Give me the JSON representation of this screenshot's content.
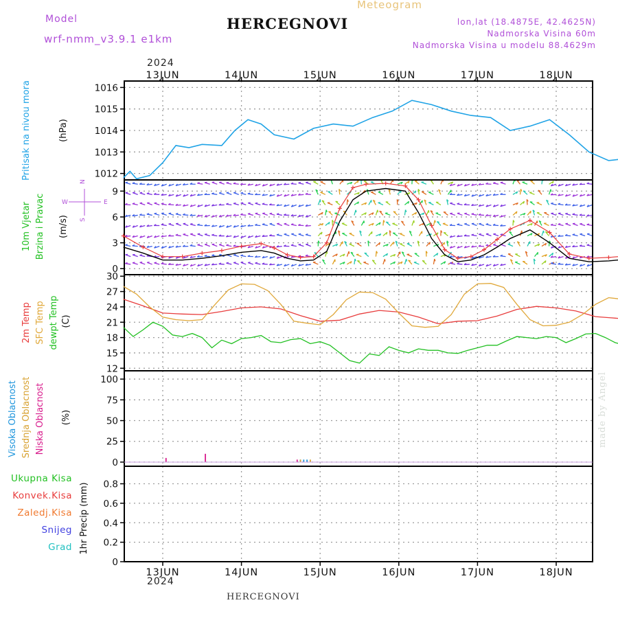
{
  "header": {
    "model_label": "Model",
    "model_name": "wrf-nmm_v3.9.1 e1km",
    "title": "HERCEGNOVI",
    "meteogram": "Meteogram",
    "lonlat": "lon,lat (18.4875E, 42.4625N)",
    "elevation": "Nadmorska Visina 60m",
    "model_elevation": "Nadmorska Visina u modelu 88.4629m",
    "year": "2024",
    "footer_title": "HERCEGNOVI",
    "watermark": "made by Angel"
  },
  "colors": {
    "pressure": "#1fa3e6",
    "temp2m": "#e83c3c",
    "sfc": "#e0a83a",
    "dewpt": "#22c022",
    "high_cloud": "#1c94dc",
    "mid_cloud": "#d8a232",
    "low_cloud": "#d81b8c",
    "wind_speed": "#000000",
    "wind_gust": "#e83c3c",
    "grid": "#9a9a9a"
  },
  "chart_data": [
    {
      "type": "line",
      "panel": "pressure",
      "ylabel_lines": [
        "Pritisak na nivou mora"
      ],
      "unit": "(hPa)",
      "x_ticks": [
        "13JUN",
        "14JUN",
        "15JUN",
        "16JUN",
        "17JUN",
        "18JUN"
      ],
      "ylim": [
        1011.7,
        1016.3
      ],
      "yticks": [
        1012,
        1013,
        1014,
        1015,
        1016
      ],
      "grid": true,
      "series": [
        {
          "key": "pressure",
          "x_hours": [
            0,
            2,
            4,
            8,
            12,
            16,
            20,
            24,
            30,
            34,
            38,
            42,
            46,
            52,
            58,
            64,
            70,
            76,
            82,
            88,
            94,
            100,
            106,
            112,
            118,
            124,
            130,
            136,
            142,
            148,
            154,
            160,
            166,
            172,
            178,
            184,
            190,
            196,
            202,
            208,
            214,
            220,
            226,
            232,
            238,
            244,
            250,
            256,
            262,
            268,
            274,
            280,
            286,
            290,
            294,
            298,
            302,
            306
          ],
          "values": [
            1011.8,
            1012.1,
            1011.75,
            1011.9,
            1012.5,
            1013.3,
            1013.2,
            1013.35,
            1013.3,
            1014.0,
            1014.5,
            1014.3,
            1013.8,
            1013.6,
            1014.1,
            1014.3,
            1014.2,
            1014.6,
            1014.9,
            1015.4,
            1015.2,
            1014.9,
            1014.7,
            1014.6,
            1014.0,
            1014.2,
            1014.5,
            1013.8,
            1013.0,
            1012.6,
            1012.7,
            1012.8,
            1012.75,
            1013.3,
            1014.0,
            1014.3,
            1014.0,
            1013.5,
            1013.2,
            1013.6,
            1013.9,
            1014.0,
            1014.5,
            1014.9,
            1015.2,
            1015.05,
            1014.8,
            1015.2,
            1015.0,
            1014.8,
            1015.2,
            1015.5,
            1015.9,
            1015.9,
            1015.8,
            1015.75,
            1015.9,
            1015.8
          ]
        }
      ]
    },
    {
      "type": "line",
      "panel": "wind",
      "ylabel_lines": [
        "10m Vjetar",
        "Brzina i Pravac"
      ],
      "unit": "(m/s)",
      "direction_key": {
        "n": "N",
        "s": "S",
        "w": "W",
        "e": "E"
      },
      "ylim": [
        -0.7,
        10.3
      ],
      "yticks": [
        0,
        3,
        6,
        9
      ],
      "grid": true,
      "series": [
        {
          "key": "wind_speed",
          "x_hours": [
            0,
            6,
            12,
            18,
            24,
            30,
            36,
            42,
            46,
            50,
            54,
            58,
            62,
            66,
            70,
            74,
            80,
            86,
            90,
            94,
            98,
            102,
            106,
            110,
            114,
            118,
            124,
            130,
            136,
            142,
            148,
            154,
            160,
            166,
            172,
            178,
            184,
            190,
            196,
            202,
            208,
            214,
            220,
            226,
            232,
            238,
            244,
            250,
            256,
            262,
            268,
            274,
            280,
            286,
            292,
            298,
            306
          ],
          "values": [
            2.5,
            1.8,
            1.0,
            1.0,
            1.2,
            1.5,
            1.9,
            2.1,
            1.8,
            1.2,
            0.9,
            1.0,
            2.0,
            5.5,
            8.0,
            9.0,
            9.3,
            9.0,
            6.5,
            3.5,
            1.6,
            0.8,
            1.0,
            1.6,
            2.5,
            3.5,
            4.5,
            3.0,
            1.2,
            0.8,
            0.9,
            1.1,
            1.3,
            2.0,
            3.0,
            2.5,
            1.8,
            1.0,
            0.8,
            1.0,
            1.5,
            2.0,
            2.6,
            2.4,
            2.8,
            2.2,
            1.2,
            0.9,
            0.9,
            1.0,
            1.1,
            1.2,
            1.4,
            1.8,
            2.5,
            2.2,
            1.8
          ]
        },
        {
          "key": "wind_gust",
          "x_hours": [
            0,
            6,
            12,
            18,
            24,
            30,
            36,
            42,
            46,
            50,
            54,
            58,
            62,
            66,
            70,
            74,
            80,
            86,
            90,
            94,
            98,
            102,
            106,
            110,
            114,
            118,
            124,
            130,
            136,
            142,
            148,
            154,
            160,
            166,
            172,
            178,
            184,
            190,
            196,
            202,
            208,
            214,
            220,
            226,
            232,
            238,
            244,
            250,
            256,
            262,
            268,
            274,
            280,
            286,
            292,
            298,
            306
          ],
          "values": [
            3.8,
            2.5,
            1.4,
            1.4,
            1.8,
            2.1,
            2.6,
            2.9,
            2.4,
            1.6,
            1.3,
            1.4,
            3.0,
            7.0,
            9.4,
            9.8,
            9.9,
            9.6,
            8.0,
            5.0,
            2.2,
            1.2,
            1.4,
            2.2,
            3.4,
            4.6,
            5.6,
            4.2,
            1.7,
            1.2,
            1.3,
            1.5,
            1.8,
            2.8,
            3.6,
            3.1,
            2.4,
            1.4,
            1.1,
            1.4,
            2.1,
            2.6,
            3.0,
            2.8,
            3.2,
            2.8,
            1.7,
            1.2,
            1.2,
            1.4,
            1.5,
            1.6,
            1.9,
            2.4,
            3.1,
            2.8,
            2.3
          ]
        }
      ]
    },
    {
      "type": "line",
      "panel": "temperature",
      "ylabel_lines": [
        "2m Temp",
        "SFC Temp",
        "dewpt Temp"
      ],
      "unit": "(C)",
      "ylim": [
        11.5,
        30.3
      ],
      "yticks": [
        12,
        15,
        18,
        21,
        24,
        27,
        30
      ],
      "grid": true,
      "series": [
        {
          "key": "temp2m",
          "x_hours": [
            0,
            6,
            12,
            18,
            24,
            30,
            36,
            42,
            48,
            54,
            60,
            66,
            72,
            78,
            84,
            90,
            96,
            102,
            108,
            114,
            120,
            126,
            132,
            138,
            144,
            150,
            156,
            162,
            168,
            174,
            180,
            186,
            192,
            198,
            204,
            210,
            216,
            222,
            228,
            234,
            240,
            246,
            252,
            258,
            264,
            270,
            276,
            282,
            288,
            294,
            300,
            306
          ],
          "values": [
            25.5,
            24.2,
            22.8,
            22.6,
            22.5,
            23.1,
            23.8,
            24.0,
            23.6,
            22.3,
            21.2,
            21.4,
            22.6,
            23.3,
            23.0,
            22.0,
            20.7,
            21.2,
            21.3,
            22.2,
            23.5,
            24.1,
            23.8,
            23.2,
            22.1,
            21.8,
            21.5,
            22.4,
            23.9,
            24.8,
            24.6,
            23.3,
            24.4,
            24.8,
            25.3,
            25.0,
            24.7,
            25.2,
            25.5,
            25.0,
            24.1,
            23.6,
            23.4,
            23.6,
            23.7,
            23.5,
            23.3,
            23.2,
            25.1,
            26.1,
            27.0,
            27.4
          ]
        },
        {
          "key": "sfc",
          "x_hours": [
            0,
            4,
            8,
            12,
            16,
            20,
            24,
            28,
            32,
            36,
            40,
            44,
            48,
            52,
            56,
            60,
            64,
            68,
            72,
            76,
            80,
            84,
            88,
            92,
            96,
            100,
            104,
            108,
            112,
            116,
            120,
            124,
            128,
            132,
            136,
            140,
            144,
            148,
            152,
            156,
            160,
            164,
            168,
            172,
            176,
            180,
            184,
            188,
            192,
            196,
            200,
            204,
            208,
            212,
            216,
            220,
            224,
            228,
            232,
            236,
            240,
            244,
            248,
            252,
            256,
            260,
            264,
            268,
            272,
            276,
            280,
            284,
            288,
            292,
            296,
            300,
            306
          ],
          "values": [
            28.0,
            26.5,
            24.0,
            22.0,
            21.5,
            21.3,
            21.5,
            24.5,
            27.3,
            28.5,
            28.4,
            27.2,
            24.5,
            21.2,
            20.8,
            20.5,
            22.5,
            25.4,
            26.9,
            26.8,
            25.5,
            22.8,
            20.3,
            20.0,
            20.2,
            22.5,
            26.5,
            28.5,
            28.6,
            27.8,
            24.5,
            21.5,
            20.3,
            20.4,
            21.0,
            22.5,
            24.5,
            25.8,
            25.5,
            23.5,
            20.6,
            20.3,
            26.5,
            28.8,
            28.9,
            27.5,
            24.0,
            21.0,
            20.8,
            21.3,
            25.2,
            28.0,
            29.0,
            28.5,
            25.8,
            22.0,
            26.0,
            28.3,
            29.0,
            28.4,
            26.2,
            23.0,
            22.5,
            22.3,
            22.5,
            22.9,
            22.8,
            22.6,
            22.5,
            22.6,
            22.8,
            22.6,
            25.5,
            28.0,
            29.5,
            29.8,
            28.0
          ]
        },
        {
          "key": "dewpt",
          "x_hours": [
            0,
            3,
            6,
            9,
            12,
            15,
            18,
            21,
            24,
            27,
            30,
            33,
            36,
            39,
            42,
            45,
            48,
            51,
            54,
            57,
            60,
            63,
            66,
            69,
            72,
            75,
            78,
            81,
            84,
            87,
            90,
            93,
            96,
            99,
            102,
            105,
            108,
            111,
            114,
            117,
            120,
            123,
            126,
            129,
            132,
            135,
            138,
            141,
            144,
            147,
            150,
            153,
            156,
            159,
            162,
            165,
            168,
            171,
            174,
            177,
            180,
            183,
            186,
            189,
            192,
            195,
            198,
            201,
            204,
            207,
            210,
            213,
            216,
            219,
            222,
            225,
            228,
            231,
            234,
            237,
            240,
            243,
            246,
            249,
            252,
            255,
            258,
            261,
            264,
            267,
            270,
            273,
            276,
            279,
            282,
            285,
            288,
            291,
            294,
            297,
            300,
            303,
            306
          ],
          "values": [
            20.0,
            18.2,
            19.5,
            21.0,
            20.2,
            18.5,
            18.2,
            18.8,
            18.0,
            16.0,
            17.5,
            16.8,
            17.8,
            18.0,
            18.4,
            17.2,
            17.0,
            17.6,
            17.8,
            16.8,
            17.2,
            16.5,
            15.0,
            13.5,
            13.0,
            14.8,
            14.5,
            16.2,
            15.5,
            15.0,
            15.8,
            15.5,
            15.5,
            15.0,
            14.9,
            15.5,
            16.0,
            16.5,
            16.5,
            17.4,
            18.2,
            18.0,
            17.8,
            18.2,
            18.0,
            17.0,
            17.8,
            18.7,
            18.8,
            18.0,
            17.0,
            16.5,
            16.5,
            16.0,
            15.5,
            15.0,
            14.5,
            17.0,
            18.2,
            18.5,
            18.0,
            18.5,
            17.0,
            19.5,
            20.4,
            20.5,
            19.5,
            18.5,
            17.5,
            14.2,
            15.0,
            15.4,
            16.0,
            17.5,
            18.5,
            17.0,
            19.5,
            20.0,
            18.5,
            17.5,
            18.2,
            17.0,
            17.5,
            18.2,
            18.3,
            18.0,
            17.5,
            17.0,
            16.5,
            17.8,
            18.5,
            18.0,
            17.0,
            18.5,
            19.0,
            18.0,
            18.5,
            17.6,
            17.0,
            18.0,
            19.2,
            18.0,
            18.0
          ]
        }
      ]
    },
    {
      "type": "bar",
      "panel": "clouds",
      "ylabel_lines": [
        "Visoka Oblacnost",
        "Srednja Oblacnost",
        "Niska Oblacnost"
      ],
      "unit": "(%)",
      "ylim": [
        -5,
        110
      ],
      "yticks": [
        0,
        25,
        50,
        75,
        100
      ],
      "grid": true,
      "series": [
        {
          "key": "high_cloud",
          "x_hours": [
            54,
            55,
            56,
            206,
            207,
            208,
            209,
            210,
            211,
            212,
            213,
            214,
            215,
            216,
            217,
            218,
            219,
            220,
            221,
            222,
            223
          ],
          "values": [
            3,
            3,
            3,
            98,
            100,
            98,
            100,
            98,
            100,
            98,
            100,
            98,
            100,
            98,
            100,
            98,
            100,
            98,
            100,
            98,
            100
          ]
        },
        {
          "key": "mid_cloud",
          "x_hours": [
            54,
            57,
            233,
            234,
            236,
            237,
            239,
            240,
            242,
            243
          ],
          "values": [
            3,
            3,
            55,
            45,
            100,
            98,
            100,
            98,
            100,
            98
          ]
        },
        {
          "key": "low_cloud",
          "x_hours": [
            13,
            25,
            53,
            253
          ],
          "values": [
            5,
            10,
            3,
            4
          ]
        }
      ]
    },
    {
      "type": "bar",
      "panel": "precip",
      "ylabel_lines": [
        "1hr Precip (mm)"
      ],
      "legend": [
        "Ukupna Kisa",
        "Konvek.Kisa",
        "Zaledj.Kisa",
        "Snijeg",
        "Grad"
      ],
      "ylim": [
        0,
        0.98
      ],
      "yticks": [
        0,
        0.2,
        0.4,
        0.6,
        0.8
      ],
      "grid": true,
      "series": [
        {
          "name": "Ukupna Kisa",
          "values": []
        },
        {
          "name": "Konvek.Kisa",
          "values": []
        },
        {
          "name": "Zaledj.Kisa",
          "values": []
        },
        {
          "name": "Snijeg",
          "values": []
        },
        {
          "name": "Grad",
          "values": []
        }
      ]
    }
  ]
}
